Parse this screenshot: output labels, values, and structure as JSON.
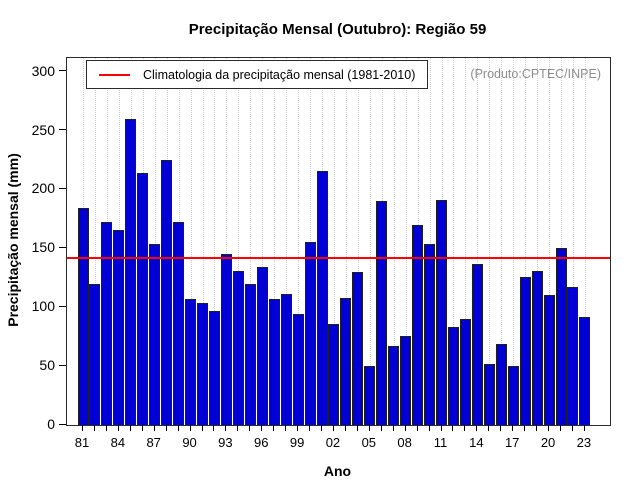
{
  "title": "Precipitação Mensal (Outubro): Região 59",
  "annotation": "(Produto:CPTEC/INPE)",
  "legend": {
    "label": "Climatologia da precipitação mensal (1981-2010)"
  },
  "colors": {
    "bar_fill": "#0000d5",
    "bar_border": "#1f1f1f",
    "climatology_line": "#ff0000",
    "grid_line": "#cdcdcd",
    "annotation_text": "#8e8e8e"
  },
  "chart_data": {
    "type": "bar",
    "title": "Precipitação Mensal (Outubro): Região 59",
    "xlabel": "Ano",
    "ylabel": "Precipitação mensal (mm)",
    "ylim": [
      0,
      300
    ],
    "yticks": [
      0,
      50,
      100,
      150,
      200,
      250,
      300
    ],
    "xtick_labels": [
      "81",
      "84",
      "87",
      "90",
      "93",
      "96",
      "99",
      "02",
      "05",
      "08",
      "11",
      "14",
      "17",
      "20",
      "23"
    ],
    "start_year": 1981,
    "years": [
      1981,
      1982,
      1983,
      1984,
      1985,
      1986,
      1987,
      1988,
      1989,
      1990,
      1991,
      1992,
      1993,
      1994,
      1995,
      1996,
      1997,
      1998,
      1999,
      2000,
      2001,
      2002,
      2003,
      2004,
      2005,
      2006,
      2007,
      2008,
      2009,
      2010,
      2011,
      2012,
      2013,
      2014,
      2015,
      2016,
      2017,
      2018,
      2019,
      2020,
      2021,
      2022,
      2023
    ],
    "values": [
      184,
      120,
      172,
      166,
      260,
      214,
      154,
      225,
      172,
      107,
      104,
      97,
      145,
      131,
      120,
      134,
      107,
      111,
      94,
      155,
      216,
      86,
      108,
      130,
      50,
      190,
      67,
      76,
      170,
      154,
      191,
      83,
      90,
      137,
      52,
      69,
      50,
      126,
      131,
      110,
      150,
      117,
      92
    ],
    "climatology_value": 142,
    "legend_position": "top-left",
    "grid": "vertical-dotted"
  }
}
